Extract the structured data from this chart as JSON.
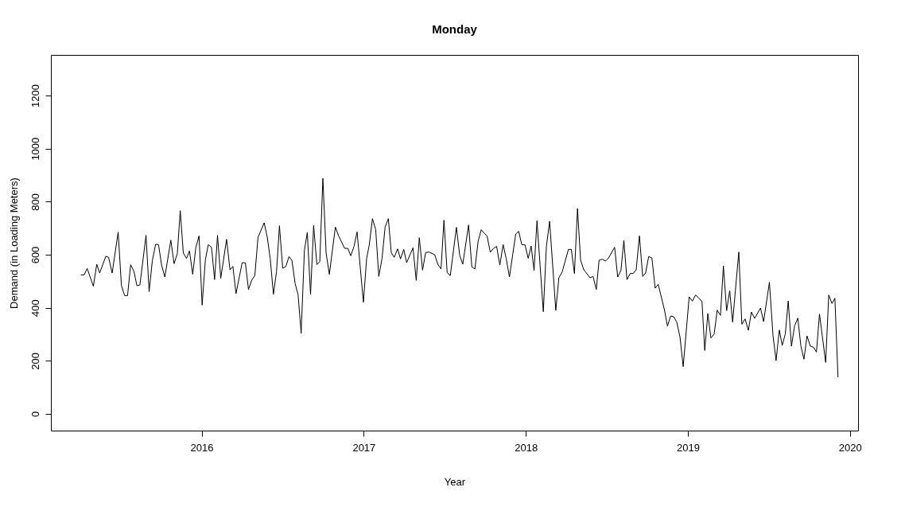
{
  "chart_data": {
    "type": "line",
    "title": "Monday",
    "xlabel": "Year",
    "ylabel": "Demand (in Loading Meters)",
    "xlim": [
      2015.07,
      2020.05
    ],
    "ylim": [
      -63,
      1353
    ],
    "xticks": [
      2016,
      2017,
      2018,
      2019,
      2020
    ],
    "yticks": [
      0,
      200,
      400,
      600,
      800,
      1000,
      1200
    ],
    "grid": false,
    "legend": false,
    "marker": "none",
    "line_style": "solid",
    "series": [
      {
        "color": "#000000",
        "x": [
          2015.255,
          2015.275,
          2015.294,
          2015.332,
          2015.353,
          2015.371,
          2015.409,
          2015.426,
          2015.448,
          2015.485,
          2015.505,
          2015.525,
          2015.543,
          2015.562,
          2015.582,
          2015.601,
          2015.619,
          2015.657,
          2015.676,
          2015.696,
          2015.716,
          2015.734,
          2015.753,
          2015.773,
          2015.81,
          2015.83,
          2015.85,
          2015.868,
          2015.887,
          2015.907,
          2015.925,
          2015.945,
          2015.964,
          2015.984,
          2016.003,
          2016.023,
          2016.041,
          2016.061,
          2016.08,
          2016.098,
          2016.118,
          2016.154,
          2016.175,
          2016.193,
          2016.212,
          2016.25,
          2016.27,
          2016.289,
          2016.309,
          2016.328,
          2016.348,
          2016.386,
          2016.405,
          2016.423,
          2016.443,
          2016.462,
          2016.48,
          2016.5,
          2016.52,
          2016.539,
          2016.557,
          2016.577,
          2016.595,
          2016.614,
          2016.634,
          2016.652,
          2016.672,
          2016.691,
          2016.711,
          2016.729,
          2016.748,
          2016.768,
          2016.788,
          2016.825,
          2016.845,
          2016.882,
          2016.902,
          2016.92,
          2016.94,
          2016.959,
          2016.998,
          2017.018,
          2017.034,
          2017.054,
          2017.074,
          2017.093,
          2017.113,
          2017.132,
          2017.152,
          2017.17,
          2017.188,
          2017.209,
          2017.227,
          2017.247,
          2017.265,
          2017.304,
          2017.324,
          2017.343,
          2017.363,
          2017.382,
          2017.402,
          2017.438,
          2017.457,
          2017.477,
          2017.495,
          2017.515,
          2017.534,
          2017.572,
          2017.592,
          2017.611,
          2017.647,
          2017.667,
          2017.686,
          2017.706,
          2017.725,
          2017.745,
          2017.761,
          2017.781,
          2017.801,
          2017.82,
          2017.84,
          2017.86,
          2017.879,
          2017.899,
          2017.938,
          2017.956,
          2017.975,
          2017.995,
          2018.015,
          2018.033,
          2018.051,
          2018.069,
          2018.108,
          2018.127,
          2018.147,
          2018.185,
          2018.204,
          2018.224,
          2018.263,
          2018.281,
          2018.3,
          2018.319,
          2018.338,
          2018.358,
          2018.397,
          2018.415,
          2018.435,
          2018.452,
          2018.472,
          2018.492,
          2018.511,
          2018.548,
          2018.567,
          2018.587,
          2018.605,
          2018.624,
          2018.644,
          2018.662,
          2018.681,
          2018.701,
          2018.721,
          2018.739,
          2018.758,
          2018.778,
          2018.798,
          2018.817,
          2018.855,
          2018.874,
          2018.894,
          2018.913,
          2018.931,
          2018.951,
          2018.971,
          2019.008,
          2019.028,
          2019.047,
          2019.067,
          2019.087,
          2019.104,
          2019.123,
          2019.142,
          2019.162,
          2019.181,
          2019.201,
          2019.219,
          2019.239,
          2019.258,
          2019.276,
          2019.314,
          2019.333,
          2019.353,
          2019.373,
          2019.392,
          2019.412,
          2019.448,
          2019.467,
          2019.503,
          2019.525,
          2019.544,
          2019.564,
          2019.582,
          2019.601,
          2019.619,
          2019.639,
          2019.658,
          2019.678,
          2019.697,
          2019.716,
          2019.735,
          2019.755,
          2019.775,
          2019.793,
          2019.812,
          2019.85,
          2019.869,
          2019.889,
          2019.907,
          2019.926
        ],
        "values": [
          524,
          524,
          548,
          481,
          564,
          531,
          594,
          590,
          531,
          685,
          484,
          446,
          446,
          562,
          538,
          483,
          486,
          673,
          461,
          578,
          639,
          638,
          561,
          516,
          655,
          566,
          604,
          766,
          606,
          586,
          614,
          526,
          626,
          671,
          410,
          581,
          638,
          628,
          506,
          673,
          511,
          658,
          543,
          556,
          453,
          570,
          569,
          469,
          504,
          521,
          666,
          720,
          666,
          586,
          451,
          536,
          709,
          549,
          556,
          593,
          579,
          491,
          449,
          304,
          616,
          684,
          450,
          710,
          563,
          574,
          888,
          606,
          526,
          704,
          671,
          624,
          624,
          596,
          631,
          686,
          421,
          586,
          636,
          736,
          694,
          518,
          586,
          704,
          736,
          608,
          590,
          622,
          584,
          620,
          570,
          626,
          503,
          664,
          542,
          608,
          610,
          600,
          564,
          546,
          730,
          532,
          521,
          703,
          598,
          564,
          712,
          554,
          546,
          651,
          694,
          680,
          671,
          609,
          624,
          631,
          561,
          638,
          586,
          516,
          678,
          688,
          638,
          637,
          586,
          633,
          541,
          728,
          385,
          631,
          726,
          390,
          513,
          534,
          620,
          620,
          529,
          774,
          579,
          543,
          513,
          518,
          469,
          579,
          583,
          576,
          588,
          628,
          516,
          541,
          654,
          506,
          529,
          529,
          543,
          671,
          518,
          531,
          593,
          588,
          474,
          488,
          393,
          331,
          369,
          366,
          346,
          291,
          178,
          441,
          425,
          448,
          437,
          423,
          239,
          378,
          286,
          301,
          391,
          371,
          558,
          389,
          464,
          346,
          610,
          338,
          358,
          315,
          384,
          360,
          399,
          348,
          496,
          296,
          201,
          316,
          258,
          301,
          426,
          255,
          331,
          361,
          256,
          206,
          294,
          256,
          251,
          233,
          376,
          194,
          448,
          416,
          436,
          138
        ]
      }
    ]
  }
}
